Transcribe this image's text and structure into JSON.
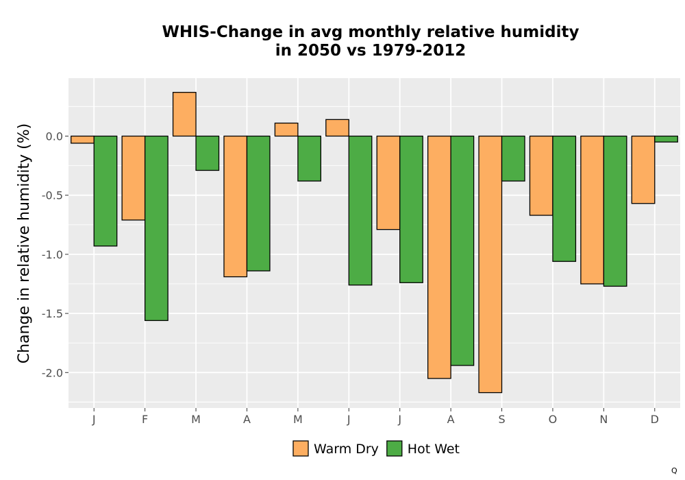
{
  "chart_data": {
    "type": "bar",
    "title_lines": [
      "WHIS-Change in avg monthly relative humidity",
      "in 2050 vs 1979-2012"
    ],
    "xlabel": "",
    "ylabel": "Change in relative humidity (%)",
    "categories": [
      "J",
      "F",
      "M",
      "A",
      "M",
      "J",
      "J",
      "A",
      "S",
      "O",
      "N",
      "D"
    ],
    "series": [
      {
        "name": "Warm Dry",
        "color": "#FDAE61",
        "values": [
          -0.06,
          -0.71,
          0.37,
          -1.19,
          0.11,
          0.14,
          -0.79,
          -2.05,
          -2.17,
          -0.67,
          -1.25,
          -0.57
        ]
      },
      {
        "name": "Hot Wet",
        "color": "#4DAC45",
        "values": [
          -0.93,
          -1.56,
          -0.29,
          -1.14,
          -0.38,
          -1.26,
          -1.24,
          -1.94,
          -0.38,
          -1.06,
          -1.27,
          -0.05
        ]
      }
    ],
    "yticks": [
      0.0,
      -0.5,
      -1.0,
      -1.5,
      -2.0
    ],
    "ytick_labels": [
      "0.0",
      "-0.5",
      "-1.0",
      "-1.5",
      "-2.0"
    ],
    "ylim": [
      -2.3,
      0.49
    ],
    "grid": true,
    "legend_position": "bottom",
    "panel_color": "#EBEBEB"
  },
  "corner_mark": "Q"
}
